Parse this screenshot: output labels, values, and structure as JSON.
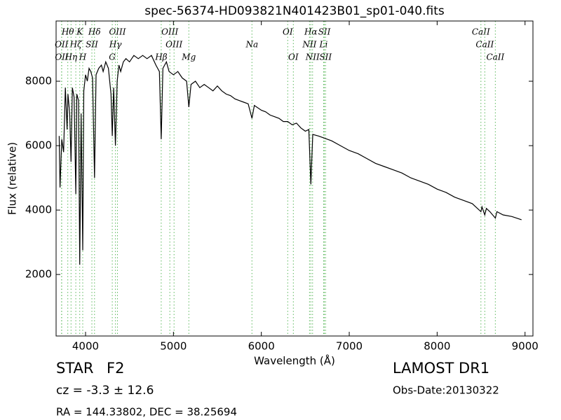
{
  "chart_data": {
    "type": "line",
    "title": "spec-56374-HD093821N401423B01_sp01-040.fits",
    "x_label": "Wavelength (Å)",
    "y_label": "Flux (relative)",
    "xlim": [
      3665,
      9090
    ],
    "ylim": [
      90,
      9870
    ],
    "xticks": [
      4000,
      5000,
      6000,
      7000,
      8000,
      9000
    ],
    "yticks": [
      2000,
      4000,
      6000,
      8000
    ],
    "line_color": "#000000",
    "marker_color": "#5cb85c",
    "x": [
      3700,
      3710,
      3730,
      3750,
      3770,
      3790,
      3800,
      3820,
      3835,
      3850,
      3870,
      3889,
      3900,
      3920,
      3934,
      3950,
      3968,
      3980,
      4000,
      4020,
      4040,
      4060,
      4080,
      4102,
      4120,
      4150,
      4180,
      4200,
      4230,
      4260,
      4290,
      4304,
      4320,
      4340,
      4360,
      4380,
      4400,
      4430,
      4460,
      4500,
      4550,
      4600,
      4650,
      4700,
      4750,
      4800,
      4840,
      4861,
      4880,
      4920,
      4950,
      5000,
      5050,
      5100,
      5150,
      5175,
      5200,
      5250,
      5300,
      5350,
      5400,
      5450,
      5500,
      5550,
      5600,
      5650,
      5700,
      5750,
      5800,
      5850,
      5893,
      5920,
      6000,
      6050,
      6100,
      6150,
      6200,
      6250,
      6300,
      6350,
      6400,
      6450,
      6500,
      6540,
      6563,
      6585,
      6650,
      6700,
      6800,
      6900,
      7000,
      7100,
      7200,
      7300,
      7400,
      7500,
      7600,
      7700,
      7800,
      7900,
      8000,
      8100,
      8200,
      8300,
      8400,
      8498,
      8510,
      8542,
      8560,
      8600,
      8662,
      8680,
      8750,
      8850,
      8960
    ],
    "values": [
      6300,
      4700,
      6200,
      5800,
      7800,
      6500,
      7600,
      7000,
      5500,
      7800,
      7500,
      4500,
      7600,
      7400,
      2300,
      7000,
      2750,
      7700,
      8200,
      8000,
      8400,
      8300,
      8100,
      5000,
      8200,
      8400,
      8500,
      8300,
      8600,
      8400,
      7600,
      6300,
      7800,
      6000,
      8000,
      8500,
      8300,
      8600,
      8700,
      8600,
      8800,
      8700,
      8800,
      8700,
      8800,
      8500,
      8300,
      6200,
      8400,
      8600,
      8300,
      8200,
      8300,
      8100,
      8000,
      7200,
      7900,
      8000,
      7800,
      7900,
      7800,
      7700,
      7850,
      7700,
      7600,
      7550,
      7450,
      7400,
      7350,
      7300,
      6850,
      7250,
      7100,
      7050,
      6950,
      6900,
      6850,
      6750,
      6750,
      6650,
      6700,
      6550,
      6450,
      6500,
      4800,
      6350,
      6300,
      6250,
      6150,
      6000,
      5850,
      5750,
      5600,
      5450,
      5350,
      5250,
      5150,
      5000,
      4900,
      4800,
      4650,
      4550,
      4400,
      4300,
      4200,
      3950,
      4100,
      3850,
      4050,
      3950,
      3750,
      3950,
      3850,
      3800,
      3700
    ],
    "lines": [
      {
        "name": "Hθ",
        "wavelength": 3798
      },
      {
        "name": "K",
        "wavelength": 3934
      },
      {
        "name": "Hδ",
        "wavelength": 4102
      },
      {
        "name": "OIII",
        "wavelength": 4363
      },
      {
        "name": "OIII",
        "wavelength": 4959
      },
      {
        "name": "OI",
        "wavelength": 6300
      },
      {
        "name": "Hα",
        "wavelength": 6563
      },
      {
        "name": "SII",
        "wavelength": 6717
      },
      {
        "name": "CaII",
        "wavelength": 8498
      },
      {
        "name": "OII",
        "wavelength": 3727
      },
      {
        "name": "Hζ",
        "wavelength": 3889
      },
      {
        "name": "SII",
        "wavelength": 4072
      },
      {
        "name": "Hγ",
        "wavelength": 4340
      },
      {
        "name": "OIII",
        "wavelength": 5007
      },
      {
        "name": "Na",
        "wavelength": 5893
      },
      {
        "name": "NII",
        "wavelength": 6548
      },
      {
        "name": "Li",
        "wavelength": 6708
      },
      {
        "name": "CaII",
        "wavelength": 8542
      },
      {
        "name": "OII",
        "wavelength": 3729
      },
      {
        "name": "Hη",
        "wavelength": 3835
      },
      {
        "name": "H",
        "wavelength": 3968
      },
      {
        "name": "G",
        "wavelength": 4304
      },
      {
        "name": "Hβ",
        "wavelength": 4861
      },
      {
        "name": "Mg",
        "wavelength": 5175
      },
      {
        "name": "OI",
        "wavelength": 6364
      },
      {
        "name": "NII",
        "wavelength": 6583
      },
      {
        "name": "SII",
        "wavelength": 6731
      },
      {
        "name": "CaII",
        "wavelength": 8662
      }
    ]
  },
  "footer": {
    "class": "STAR",
    "subclass": "F2",
    "redshift": "cz = -3.3 ± 12.6",
    "coords": "RA = 144.33802, DEC = 38.25694",
    "release": "LAMOST DR1",
    "obs_date": "Obs-Date:20130322"
  }
}
